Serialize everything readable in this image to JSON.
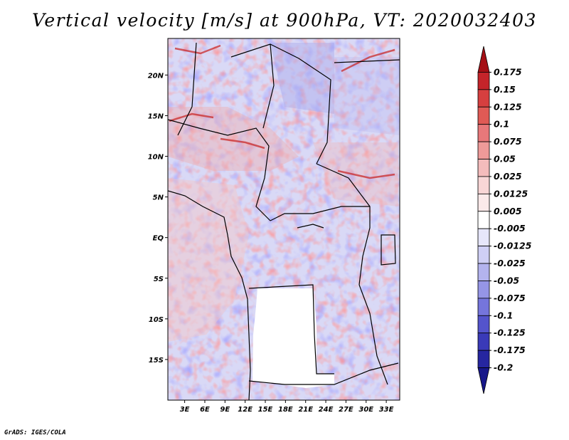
{
  "title": "Vertical velocity [m/s] at 900hPa, VT: 2020032403",
  "credit": "GrADS: IGES/COLA",
  "map": {
    "lon_range": [
      0.5,
      35
    ],
    "lat_range": [
      -20,
      24.5
    ],
    "lon_ticks": [
      {
        "lon": 3,
        "label": "3E"
      },
      {
        "lon": 6,
        "label": "6E"
      },
      {
        "lon": 9,
        "label": "9E"
      },
      {
        "lon": 12,
        "label": "12E"
      },
      {
        "lon": 15,
        "label": "15E"
      },
      {
        "lon": 18,
        "label": "18E"
      },
      {
        "lon": 21,
        "label": "21E"
      },
      {
        "lon": 24,
        "label": "24E"
      },
      {
        "lon": 27,
        "label": "27E"
      },
      {
        "lon": 30,
        "label": "30E"
      },
      {
        "lon": 33,
        "label": "33E"
      }
    ],
    "lat_ticks": [
      {
        "lat": 20,
        "label": "20N"
      },
      {
        "lat": 15,
        "label": "15N"
      },
      {
        "lat": 10,
        "label": "10N"
      },
      {
        "lat": 5,
        "label": "5N"
      },
      {
        "lat": 0,
        "label": "EQ"
      },
      {
        "lat": -5,
        "label": "5S"
      },
      {
        "lat": -10,
        "label": "10S"
      },
      {
        "lat": -15,
        "label": "15S"
      }
    ]
  },
  "colorbar": {
    "levels": [
      "0.175",
      "0.15",
      "0.125",
      "0.1",
      "0.075",
      "0.05",
      "0.025",
      "0.0125",
      "0.005",
      "-0.005",
      "-0.0125",
      "-0.025",
      "-0.05",
      "-0.075",
      "-0.1",
      "-0.125",
      "-0.175",
      "-0.2"
    ],
    "colors": [
      "#a50f15",
      "#c4242a",
      "#d63f3f",
      "#e05a55",
      "#e8787a",
      "#ee9a99",
      "#f4bcbc",
      "#f8d6d6",
      "#fbeaea",
      "#ffffff",
      "#e6e6fa",
      "#cfcff5",
      "#b3b3ee",
      "#9595e6",
      "#7575dc",
      "#5454cc",
      "#3a3ab8",
      "#2626a0",
      "#17178a"
    ]
  }
}
